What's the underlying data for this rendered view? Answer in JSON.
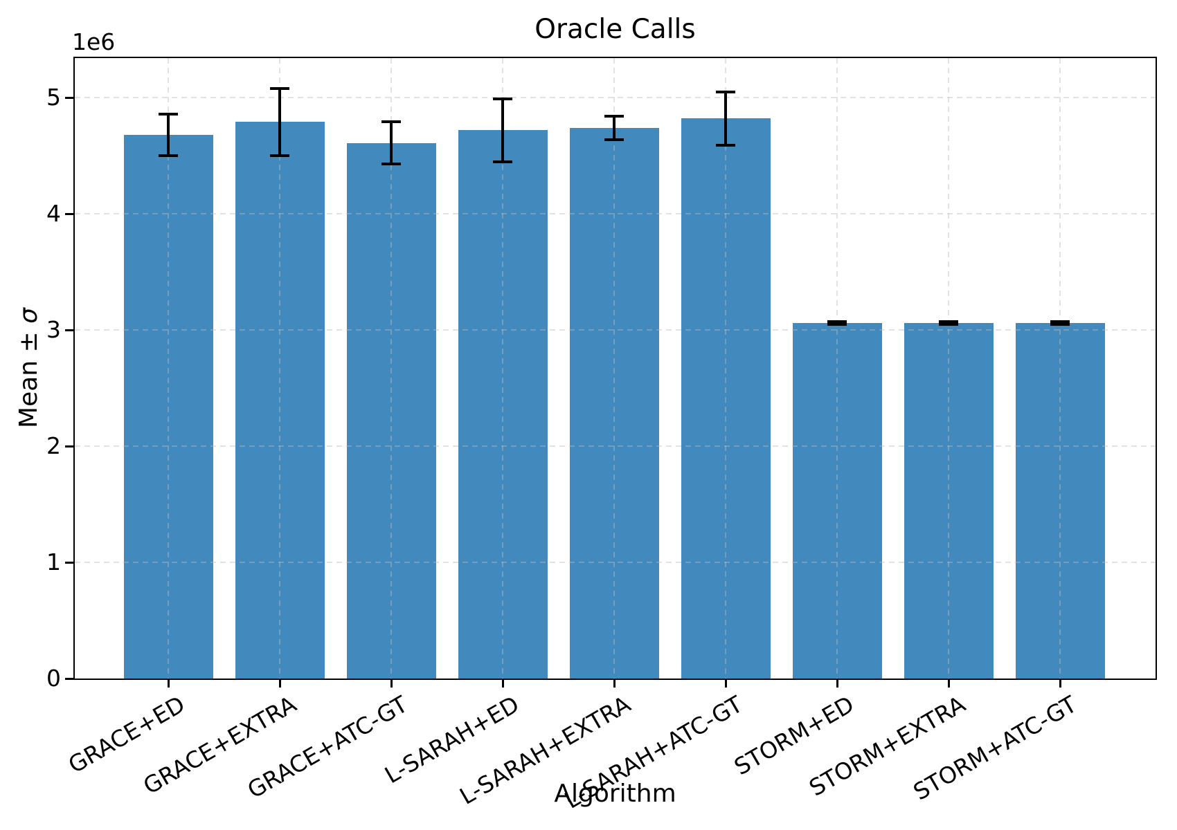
{
  "chart_data": {
    "type": "bar",
    "title": "Oracle Calls",
    "xlabel": "Algorithm",
    "ylabel": "Mean ± σ",
    "ylabel_prefix": "Mean ± ",
    "ylabel_sigma": "σ",
    "y_offset_label": "1e6",
    "categories": [
      "GRACE+ED",
      "GRACE+EXTRA",
      "GRACE+ATC-GT",
      "L-SARAH+ED",
      "L-SARAH+EXTRA",
      "L-SARAH+ATC-GT",
      "STORM+ED",
      "STORM+EXTRA",
      "STORM+ATC-GT"
    ],
    "series": [
      {
        "name": "Mean ± σ",
        "values": [
          4680000,
          4790000,
          4610000,
          4720000,
          4740000,
          4820000,
          3060000,
          3060000,
          3060000
        ],
        "errors": [
          180000,
          290000,
          180000,
          270000,
          100000,
          230000,
          10000,
          10000,
          10000
        ]
      }
    ],
    "ytick_labels": [
      "0",
      "1",
      "2",
      "3",
      "4",
      "5"
    ],
    "ytick_step": 1000000,
    "ylim": [
      0,
      5340000
    ],
    "grid": true,
    "grid_style": "dashed",
    "legend": "none",
    "bar_color": "#4289be",
    "error_color": "#000000",
    "spine_color": "#000000"
  }
}
